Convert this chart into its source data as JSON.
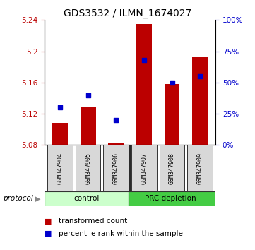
{
  "title": "GDS3532 / ILMN_1674027",
  "samples": [
    "GSM347904",
    "GSM347905",
    "GSM347906",
    "GSM347907",
    "GSM347908",
    "GSM347909"
  ],
  "red_values": [
    5.108,
    5.128,
    5.082,
    5.235,
    5.158,
    5.192
  ],
  "blue_values_pct": [
    30,
    40,
    20,
    68,
    50,
    55
  ],
  "red_baseline": 5.08,
  "ylim_left": [
    5.08,
    5.24
  ],
  "ylim_right": [
    0,
    100
  ],
  "left_ticks": [
    5.08,
    5.12,
    5.16,
    5.2,
    5.24
  ],
  "right_ticks": [
    0,
    25,
    50,
    75,
    100
  ],
  "right_tick_labels": [
    "0%",
    "25%",
    "50%",
    "75%",
    "100%"
  ],
  "bar_color": "#bb0000",
  "marker_color": "#0000cc",
  "control_color": "#ccffcc",
  "prc_color": "#44cc44",
  "legend1": "transformed count",
  "legend2": "percentile rank within the sample",
  "title_fontsize": 10,
  "tick_fontsize": 7.5,
  "label_fontsize": 8,
  "n_control": 3
}
